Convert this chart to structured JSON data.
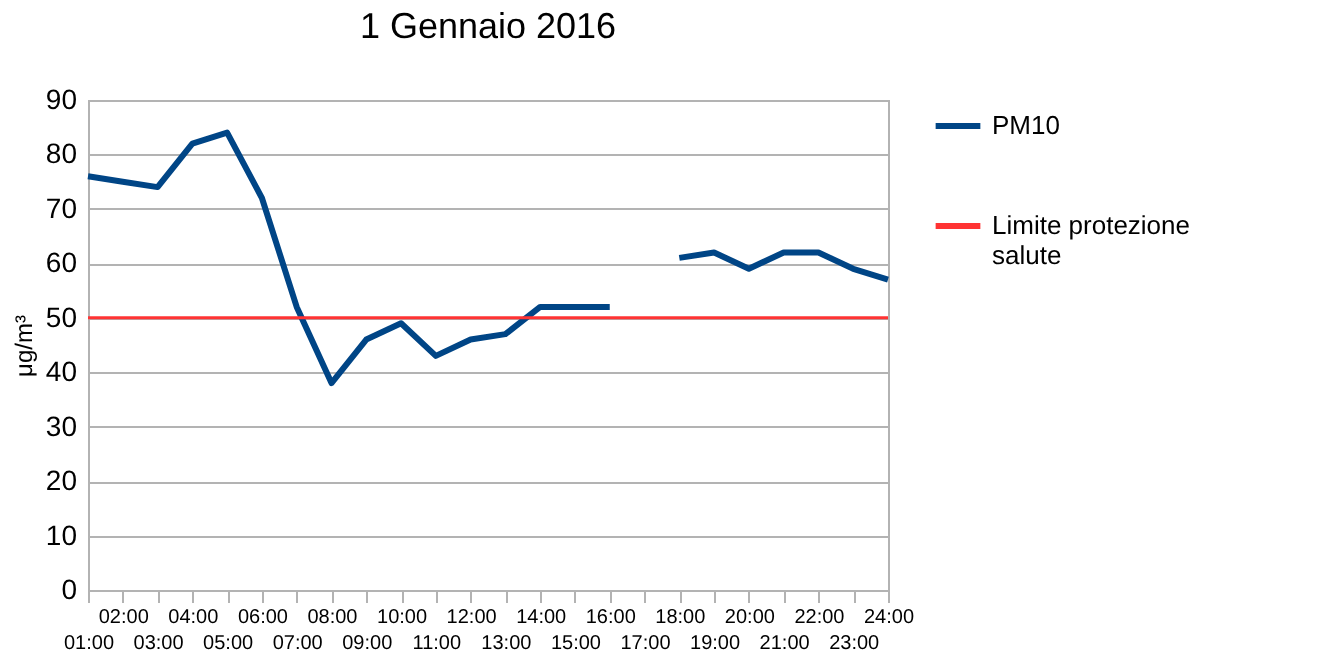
{
  "chart_data": {
    "type": "line",
    "title": "1 Gennaio 2016",
    "ylabel": "μg/m³",
    "categories": [
      "01:00",
      "02:00",
      "03:00",
      "04:00",
      "05:00",
      "06:00",
      "07:00",
      "08:00",
      "09:00",
      "10:00",
      "11:00",
      "12:00",
      "13:00",
      "14:00",
      "15:00",
      "16:00",
      "17:00",
      "18:00",
      "19:00",
      "20:00",
      "21:00",
      "22:00",
      "23:00",
      "24:00"
    ],
    "series": [
      {
        "name": "PM10",
        "color": "#004586",
        "values": [
          76,
          75,
          74,
          82,
          84,
          72,
          52,
          38,
          46,
          49,
          43,
          46,
          47,
          52,
          52,
          52,
          null,
          61,
          62,
          59,
          62,
          62,
          59,
          57
        ]
      }
    ],
    "ylim": [
      0,
      90
    ],
    "yticks": [
      0,
      10,
      20,
      30,
      40,
      50,
      60,
      70,
      80,
      90
    ],
    "grid": "y",
    "legend": "right",
    "ref_lines": [
      {
        "axis": "y",
        "value": 50,
        "label": "Limite protezione salute",
        "color": "#ff3333"
      }
    ]
  }
}
